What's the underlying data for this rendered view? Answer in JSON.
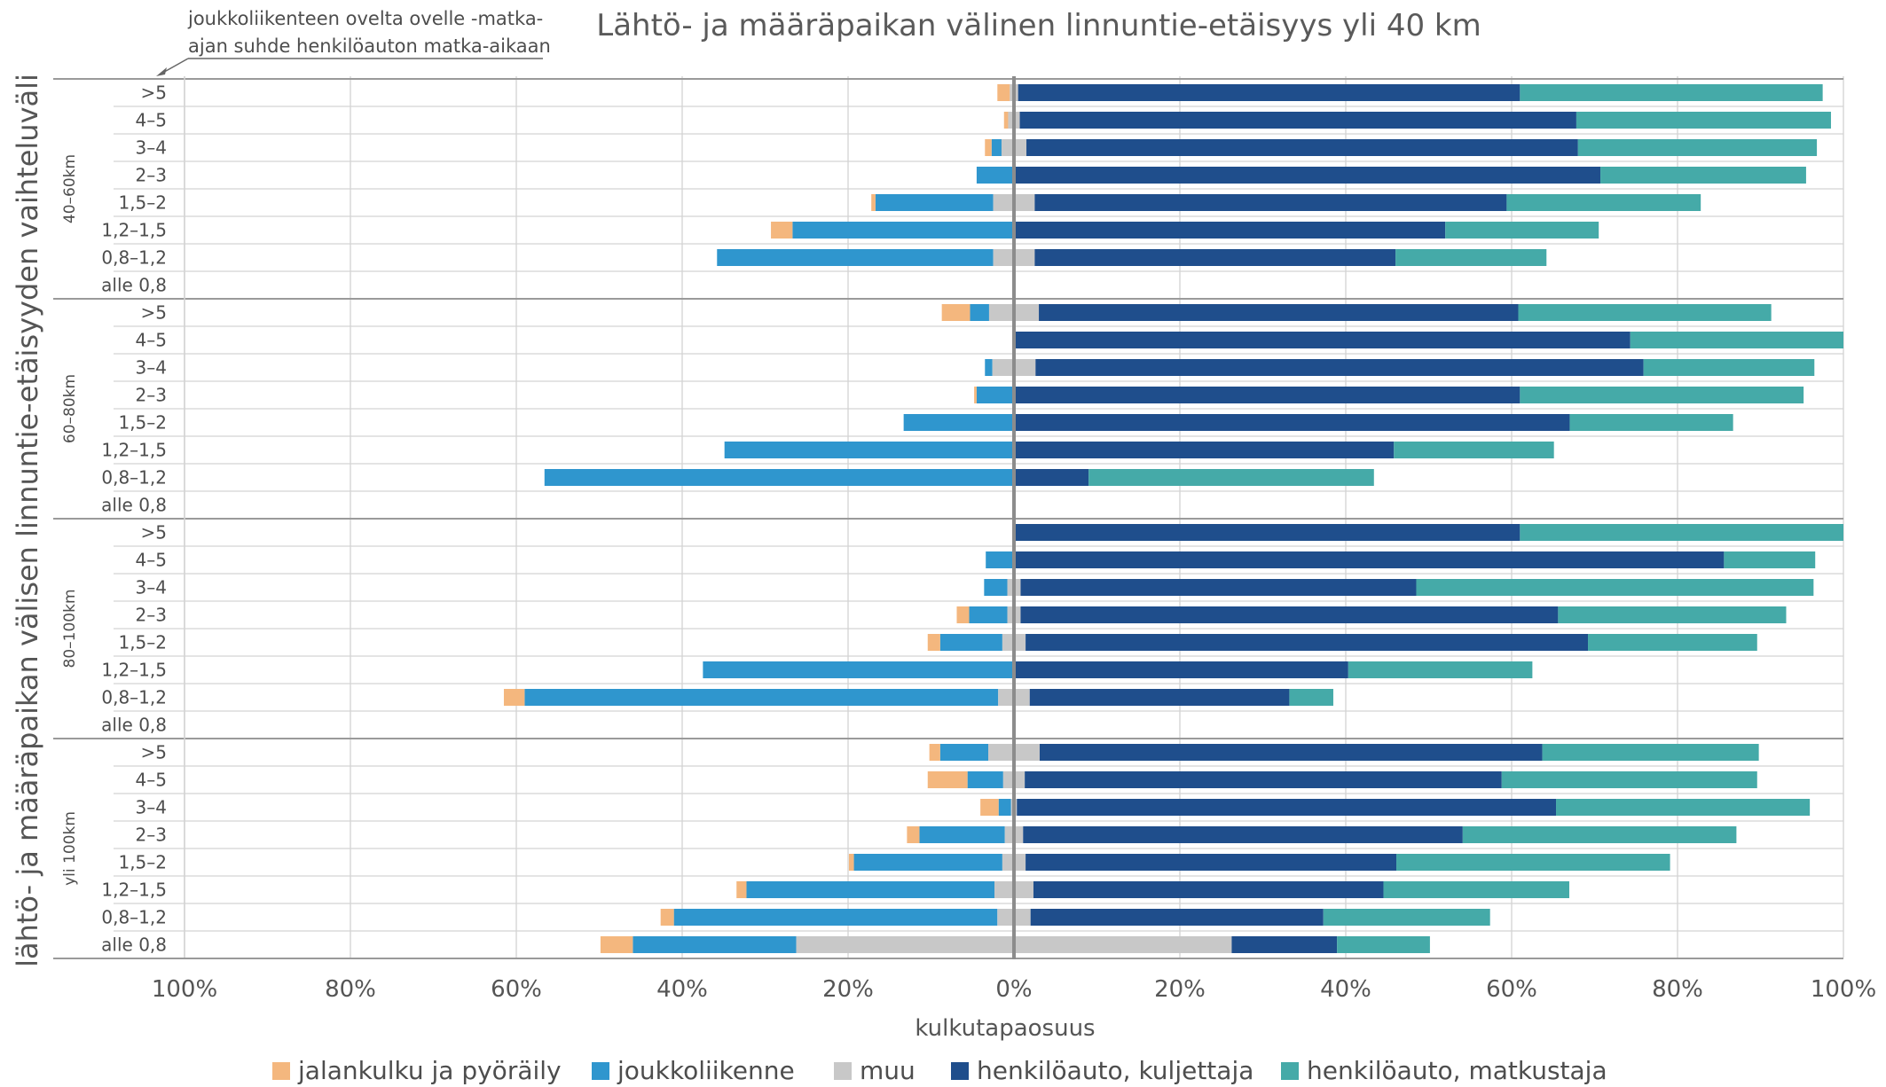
{
  "chart_data": {
    "type": "bar",
    "orientation": "horizontal",
    "stacking": "diverging",
    "title": "Lähtö- ja määräpaikan välinen linnuntie-etäisyys  yli 40 km",
    "annotation": "joukkoliikenteen ovelta ovelle -matka-ajan suhde henkilöauton matka-aikaan",
    "xlabel": "kulkutapaosuus",
    "ylabel": "lähtö- ja määräpaikan välisen linnuntie-etäisyyden vaihteluväli",
    "xlim": [
      -100,
      100
    ],
    "x_ticks": [
      "100%",
      "80%",
      "60%",
      "40%",
      "20%",
      "0%",
      "20%",
      "40%",
      "60%",
      "80%",
      "100%"
    ],
    "legend_position": "bottom",
    "categories": [
      ">5",
      "4–5",
      "3–4",
      "2–3",
      "1,5–2",
      "1,2–1,5",
      "0,8–1,2",
      "alle 0,8"
    ],
    "series": [
      {
        "name": "jalankulku ja pyöräily",
        "color": "#f4b77e",
        "side": "left"
      },
      {
        "name": "joukkoliikenne",
        "color": "#2f96ce",
        "side": "left"
      },
      {
        "name": "muu",
        "color": "#c8c8c8",
        "side": "center"
      },
      {
        "name": "henkilöauto, kuljettaja",
        "color": "#1f4e8c",
        "side": "right"
      },
      {
        "name": "henkilöauto, matkustaja",
        "color": "#45aaa8",
        "side": "right"
      }
    ],
    "groups": [
      {
        "label": "40–60km",
        "rows": [
          {
            "category": ">5",
            "values": [
              1.5,
              0,
              1,
              60.5,
              36.5
            ]
          },
          {
            "category": "4–5",
            "values": [
              0.5,
              0,
              1.4,
              67.1,
              30.7
            ]
          },
          {
            "category": "3–4",
            "values": [
              0.8,
              1.2,
              3,
              66.5,
              28.8
            ]
          },
          {
            "category": "2–3",
            "values": [
              0,
              4.5,
              0,
              70.7,
              24.8
            ]
          },
          {
            "category": "1,5–2",
            "values": [
              0.5,
              14.2,
              5,
              56.9,
              23.4
            ]
          },
          {
            "category": "1,2–1,5",
            "values": [
              2.6,
              26.7,
              0,
              52.0,
              18.5
            ]
          },
          {
            "category": "0,8–1,2",
            "values": [
              0,
              33.3,
              5,
              43.5,
              18.2
            ]
          },
          {
            "category": "alle 0,8",
            "values": [
              0,
              0,
              0,
              0,
              0
            ]
          }
        ]
      },
      {
        "label": "60–80km",
        "rows": [
          {
            "category": ">5",
            "values": [
              3.4,
              2.3,
              6,
              57.8,
              30.5
            ]
          },
          {
            "category": "4–5",
            "values": [
              0,
              0,
              0,
              74.3,
              25.7
            ]
          },
          {
            "category": "3–4",
            "values": [
              0,
              0.9,
              5.2,
              73.3,
              20.6
            ]
          },
          {
            "category": "2–3",
            "values": [
              0.3,
              4.5,
              0,
              61.0,
              34.2
            ]
          },
          {
            "category": "1,5–2",
            "values": [
              0,
              13.3,
              0,
              67.0,
              19.7
            ]
          },
          {
            "category": "1,2–1,5",
            "values": [
              0,
              34.9,
              0,
              45.8,
              19.3
            ]
          },
          {
            "category": "0,8–1,2",
            "values": [
              0,
              56.6,
              0,
              9.0,
              34.4
            ]
          },
          {
            "category": "alle 0,8",
            "values": [
              0,
              0,
              0,
              0,
              0
            ]
          }
        ]
      },
      {
        "label": "80–100km",
        "rows": [
          {
            "category": ">5",
            "values": [
              0,
              0,
              0,
              61.0,
              39.0
            ]
          },
          {
            "category": "4–5",
            "values": [
              0,
              3.4,
              0,
              85.6,
              11.0
            ]
          },
          {
            "category": "3–4",
            "values": [
              0,
              2.8,
              1.6,
              47.7,
              47.9
            ]
          },
          {
            "category": "2–3",
            "values": [
              1.5,
              4.6,
              1.6,
              64.8,
              27.5
            ]
          },
          {
            "category": "1,5–2",
            "values": [
              1.5,
              7.5,
              2.8,
              67.8,
              20.4
            ]
          },
          {
            "category": "1,2–1,5",
            "values": [
              0,
              37.5,
              0,
              40.3,
              22.2
            ]
          },
          {
            "category": "0,8–1,2",
            "values": [
              2.5,
              57.1,
              3.8,
              31.3,
              5.3
            ]
          },
          {
            "category": "alle 0,8",
            "values": [
              0,
              0,
              0,
              0,
              0
            ]
          }
        ]
      },
      {
        "label": "yli 100km",
        "rows": [
          {
            "category": ">5",
            "values": [
              1.3,
              5.8,
              6.2,
              60.6,
              26.1
            ]
          },
          {
            "category": "4–5",
            "values": [
              4.8,
              4.3,
              2.6,
              57.5,
              30.8
            ]
          },
          {
            "category": "3–4",
            "values": [
              2.2,
              1.5,
              0.7,
              65.0,
              30.6
            ]
          },
          {
            "category": "2–3",
            "values": [
              1.5,
              10.3,
              2.2,
              53.0,
              33.0
            ]
          },
          {
            "category": "1,5–2",
            "values": [
              0.6,
              17.9,
              2.8,
              44.7,
              33.0
            ]
          },
          {
            "category": "1,2–1,5",
            "values": [
              1.2,
              29.9,
              4.7,
              42.2,
              22.4
            ]
          },
          {
            "category": "0,8–1,2",
            "values": [
              1.6,
              39.0,
              4.0,
              35.3,
              20.1
            ]
          },
          {
            "category": "alle 0,8",
            "values": [
              3.9,
              19.7,
              52.5,
              12.7,
              11.2
            ]
          }
        ]
      }
    ]
  }
}
